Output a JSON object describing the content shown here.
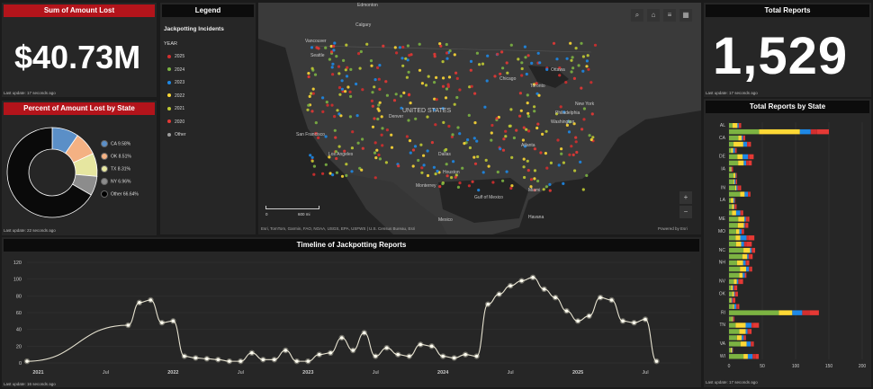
{
  "amount_lost": {
    "header": "Sum of Amount Lost",
    "value": "$40.73M",
    "last_update": "Last update: 17 seconds ago"
  },
  "percent_by_state": {
    "header": "Percent of Amount Lost by State",
    "last_update": "Last update: 22 seconds ago",
    "slices": [
      {
        "label": "CA 9.58%",
        "value": 9.58,
        "color": "#5b8fc7"
      },
      {
        "label": "OK 8.51%",
        "value": 8.51,
        "color": "#f4b183"
      },
      {
        "label": "TX 8.31%",
        "value": 8.31,
        "color": "#e6e6a0"
      },
      {
        "label": "NY 6.96%",
        "value": 6.96,
        "color": "#8c8c8c"
      },
      {
        "label": "Other 66.64%",
        "value": 66.64,
        "color": "#0a0a0a"
      }
    ]
  },
  "legend": {
    "header": "Legend",
    "title": "Jackpotting Incidents",
    "field": "YEAR",
    "items": [
      {
        "label": "2025",
        "color": "#d32f2f"
      },
      {
        "label": "2024",
        "color": "#7cb342"
      },
      {
        "label": "2023",
        "color": "#1e88e5"
      },
      {
        "label": "2022",
        "color": "#fdd835"
      },
      {
        "label": "2021",
        "color": "#c0ca33"
      },
      {
        "label": "2020",
        "color": "#e53935"
      },
      {
        "label": "Other",
        "color": "#9e9e9e"
      }
    ]
  },
  "map": {
    "attribution": "Esri, TomTom, Garmin, FAO, NOAA, USGS, EPA, USFWS | U.S. Census Bureau, Esri",
    "powered": "Powered by Esri",
    "scale_left": "0",
    "scale_right": "600 mi",
    "zoom_in": "+",
    "zoom_out": "−",
    "labels": [
      "Edmonton",
      "Calgary",
      "Vancouver",
      "Seattle",
      "San Francisco",
      "Los Angeles",
      "UNITED STATES",
      "Dallas",
      "Houston",
      "Chicago",
      "Ottawa",
      "Toronto",
      "New York",
      "Philadelphia",
      "Washington",
      "Atlanta",
      "Gulf of Mexico",
      "Mexico",
      "Miami",
      "Havana",
      "Monterrey",
      "Denver"
    ]
  },
  "total_reports": {
    "header": "Total Reports",
    "value": "1,529",
    "last_update": "Last update: 17 seconds ago"
  },
  "reports_by_state": {
    "header": "Total Reports by State",
    "states": [
      "AL",
      "CA",
      "DE",
      "IA",
      "IN",
      "LA",
      "ME",
      "MO",
      "NC",
      "NH",
      "NV",
      "OK",
      "RI",
      "TN",
      "VA",
      "WI"
    ],
    "x_ticks": [
      "0",
      "50",
      "100",
      "150",
      "200"
    ],
    "last_update": "Last update: 17 seconds ago"
  },
  "chart_data": {
    "type": "line",
    "title": "Timeline of Jackpotting Reports",
    "y_ticks": [
      "0",
      "20",
      "40",
      "60",
      "80",
      "100",
      "120"
    ],
    "ylim": [
      0,
      120
    ],
    "x_ticks": [
      "2021",
      "Jul",
      "2022",
      "Jul",
      "2023",
      "Jul",
      "2024",
      "Jul",
      "2025",
      "Jul"
    ],
    "x": [
      0,
      9,
      10,
      11,
      12,
      13,
      14,
      15,
      16,
      17,
      18,
      19,
      20,
      21,
      22,
      23,
      24,
      25,
      26,
      27,
      28,
      29,
      30,
      31,
      32,
      33,
      34,
      35,
      36,
      37,
      38,
      39,
      40,
      41,
      42,
      43,
      44,
      45,
      46,
      47,
      48,
      49,
      50,
      51,
      52,
      53,
      54,
      55,
      56
    ],
    "values": [
      2,
      45,
      72,
      75,
      48,
      50,
      8,
      6,
      5,
      4,
      2,
      2,
      12,
      4,
      4,
      15,
      2,
      2,
      10,
      12,
      30,
      15,
      36,
      8,
      18,
      10,
      8,
      22,
      20,
      8,
      6,
      10,
      8,
      70,
      82,
      92,
      98,
      102,
      88,
      78,
      62,
      50,
      56,
      78,
      75,
      50,
      48,
      52,
      2
    ],
    "last_update": "Last update: 16 seconds ago"
  }
}
